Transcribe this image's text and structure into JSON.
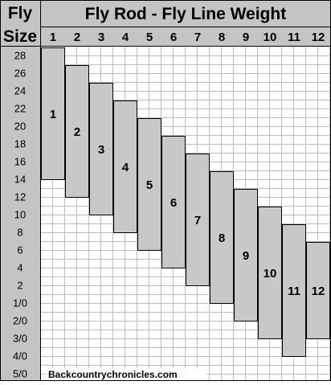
{
  "chart_data": {
    "type": "bar",
    "title": "Fly Rod - Fly Line Weight",
    "ylabel_line1": "Fly",
    "ylabel_line2": "Size",
    "categories": [
      "1",
      "2",
      "3",
      "4",
      "5",
      "6",
      "7",
      "8",
      "9",
      "10",
      "11",
      "12"
    ],
    "y_ticks": [
      "28",
      "26",
      "24",
      "22",
      "20",
      "18",
      "16",
      "14",
      "12",
      "10",
      "8",
      "6",
      "4",
      "2",
      "1/0",
      "2/0",
      "3/0",
      "4/0",
      "5/0"
    ],
    "ranges": [
      {
        "weight": "1",
        "largest": "28",
        "smallest": "14"
      },
      {
        "weight": "2",
        "largest": "26",
        "smallest": "12"
      },
      {
        "weight": "3",
        "largest": "24",
        "smallest": "10"
      },
      {
        "weight": "4",
        "largest": "22",
        "smallest": "8"
      },
      {
        "weight": "5",
        "largest": "20",
        "smallest": "6"
      },
      {
        "weight": "6",
        "largest": "18",
        "smallest": "4"
      },
      {
        "weight": "7",
        "largest": "16",
        "smallest": "2"
      },
      {
        "weight": "8",
        "largest": "14",
        "smallest": "1/0"
      },
      {
        "weight": "9",
        "largest": "12",
        "smallest": "2/0"
      },
      {
        "weight": "10",
        "largest": "10",
        "smallest": "3/0"
      },
      {
        "weight": "11",
        "largest": "8",
        "smallest": "4/0"
      },
      {
        "weight": "12",
        "largest": "6",
        "smallest": "3/0"
      }
    ],
    "grid": true,
    "footer": "Backcountrychronicles.com",
    "colors": {
      "bar": "#c8c8c8",
      "header_bg": "#c4c4c4",
      "grid": "#bdbdbd",
      "border": "#000000"
    }
  }
}
